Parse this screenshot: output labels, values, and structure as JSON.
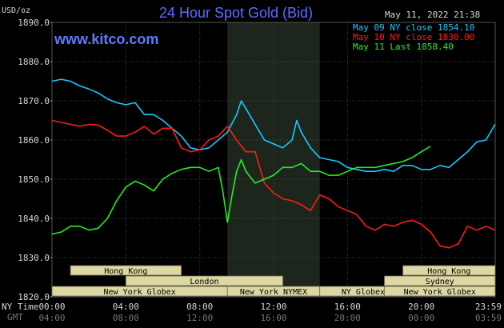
{
  "header": {
    "unit": "USD/oz",
    "title": "24 Hour Spot Gold (Bid)",
    "timestamp": "May 11, 2022 21:38",
    "site": "www.kitco.com"
  },
  "legend": [
    {
      "label": "May 09 NY close 1854.10",
      "color": "#18c8ff"
    },
    {
      "label": "May 10 NY close 1830.00",
      "color": "#ff1a1a"
    },
    {
      "label": "May 11 Last 1858.40",
      "color": "#22ee22"
    }
  ],
  "row_labels": {
    "ny": "NY Time",
    "gmt": "GMT"
  },
  "markets": [
    {
      "name": "Hong Kong",
      "row": 0,
      "start": 1,
      "end": 7
    },
    {
      "name": "London",
      "row": 1,
      "start": 4,
      "end": 12.5
    },
    {
      "name": "New York Globex",
      "row": 2,
      "start": 0,
      "end": 9.5
    },
    {
      "name": "New York NYMEX",
      "row": 2,
      "start": 9.5,
      "end": 14.5
    },
    {
      "name": "NY Globex",
      "row": 2,
      "start": 14.5,
      "end": 19.2
    },
    {
      "name": "Hong Kong",
      "row": 0,
      "start": 19,
      "end": 24
    },
    {
      "name": "Sydney",
      "row": 1,
      "start": 18,
      "end": 24
    },
    {
      "name": "New York Globex",
      "row": 2,
      "start": 18,
      "end": 24
    }
  ],
  "chart_data": {
    "type": "line",
    "title": "24 Hour Spot Gold (Bid)",
    "ylabel": "USD/oz",
    "ylim": [
      1820,
      1890
    ],
    "yticks": [
      "1890.0",
      "1880.0",
      "1870.0",
      "1860.0",
      "1850.0",
      "1840.0",
      "1830.0",
      "1820.0"
    ],
    "xlim_hours": [
      0,
      24
    ],
    "x_ticks_ny": [
      "00:00",
      "04:00",
      "08:00",
      "12:00",
      "16:00",
      "20:00",
      "23:59"
    ],
    "x_ticks_gmt": [
      "04:00",
      "08:00",
      "12:00",
      "16:00",
      "20:00",
      "00:00",
      "03:59"
    ],
    "highlight_hours": [
      9.5,
      14.5
    ],
    "grid": true,
    "legend_position": "top-right",
    "series": [
      {
        "name": "May 09 NY close 1854.10",
        "color": "#18c8ff",
        "x": [
          0,
          0.5,
          1,
          1.5,
          2,
          2.5,
          3,
          3.5,
          4,
          4.5,
          5,
          5.5,
          6,
          6.5,
          7,
          7.5,
          8,
          8.5,
          9,
          9.5,
          10,
          10.25,
          10.5,
          11,
          11.5,
          12,
          12.5,
          13,
          13.25,
          13.5,
          14,
          14.5,
          15,
          15.5,
          16,
          16.5,
          17,
          17.5,
          18,
          18.5,
          19,
          19.5,
          20,
          20.5,
          21,
          21.5,
          22,
          22.5,
          23,
          23.5,
          23.99
        ],
        "y": [
          1875,
          1875.5,
          1875,
          1873.8,
          1873,
          1872,
          1870.5,
          1869.5,
          1869,
          1869.5,
          1866.5,
          1866.5,
          1865,
          1863,
          1861,
          1858,
          1857.5,
          1858,
          1860,
          1862,
          1866.5,
          1870,
          1868,
          1864,
          1860,
          1859,
          1858,
          1860,
          1865,
          1862,
          1858,
          1855.5,
          1855,
          1854.5,
          1853,
          1852.5,
          1852,
          1852,
          1852.5,
          1852,
          1853.5,
          1853.5,
          1852.5,
          1852.5,
          1853.5,
          1853,
          1855,
          1857,
          1859.5,
          1860,
          1864
        ]
      },
      {
        "name": "May 10 NY close 1830.00",
        "color": "#ff1a1a",
        "x": [
          0,
          0.5,
          1,
          1.5,
          2,
          2.5,
          3,
          3.5,
          4,
          4.5,
          5,
          5.5,
          6,
          6.5,
          7,
          7.5,
          8,
          8.5,
          9,
          9.5,
          10,
          10.5,
          11,
          11.25,
          11.5,
          12,
          12.5,
          13,
          13.5,
          14,
          14.5,
          15,
          15.5,
          16,
          16.5,
          17,
          17.5,
          18,
          18.5,
          19,
          19.5,
          20,
          20.5,
          21,
          21.5,
          22,
          22.5,
          23,
          23.5,
          23.99
        ],
        "y": [
          1865,
          1864.5,
          1864,
          1863.5,
          1864,
          1863.8,
          1862.5,
          1861,
          1861,
          1862,
          1863.5,
          1861.5,
          1863,
          1863,
          1858,
          1857,
          1857.5,
          1860,
          1861,
          1863.5,
          1860,
          1857,
          1857,
          1853,
          1849,
          1846.5,
          1845,
          1844.5,
          1843.5,
          1842,
          1846,
          1845,
          1843,
          1842,
          1841,
          1838,
          1837,
          1838.5,
          1838,
          1839,
          1839.5,
          1838.5,
          1836.5,
          1833,
          1832.5,
          1833.5,
          1838,
          1837,
          1838,
          1837
        ]
      },
      {
        "name": "May 11 Last 1858.40",
        "color": "#22ee22",
        "x": [
          0,
          0.5,
          1,
          1.5,
          2,
          2.5,
          3,
          3.5,
          4,
          4.5,
          5,
          5.5,
          6,
          6.5,
          7,
          7.5,
          8,
          8.5,
          9,
          9.25,
          9.5,
          9.75,
          10,
          10.25,
          10.5,
          11,
          11.5,
          12,
          12.5,
          13,
          13.5,
          14,
          14.5,
          15,
          15.5,
          16,
          16.5,
          17,
          17.5,
          18,
          18.5,
          19,
          19.5,
          20,
          20.5,
          21,
          21.5,
          22,
          22.5,
          23,
          23.5,
          23.99
        ],
        "y": [
          1836,
          1836.5,
          1838,
          1838,
          1837,
          1837.5,
          1840,
          1844.5,
          1848,
          1849.5,
          1848.5,
          1847,
          1850,
          1851.5,
          1852.5,
          1853,
          1853,
          1852,
          1853,
          1847,
          1839,
          1846,
          1852,
          1855,
          1852,
          1849,
          1850,
          1851,
          1853,
          1853,
          1854,
          1852,
          1852,
          1851,
          1851,
          1852,
          1853,
          1853,
          1853,
          1853.5,
          1854,
          1854.5,
          1855.5,
          1857,
          1858.4,
          null,
          null,
          null,
          null,
          null,
          null,
          null
        ]
      }
    ]
  }
}
